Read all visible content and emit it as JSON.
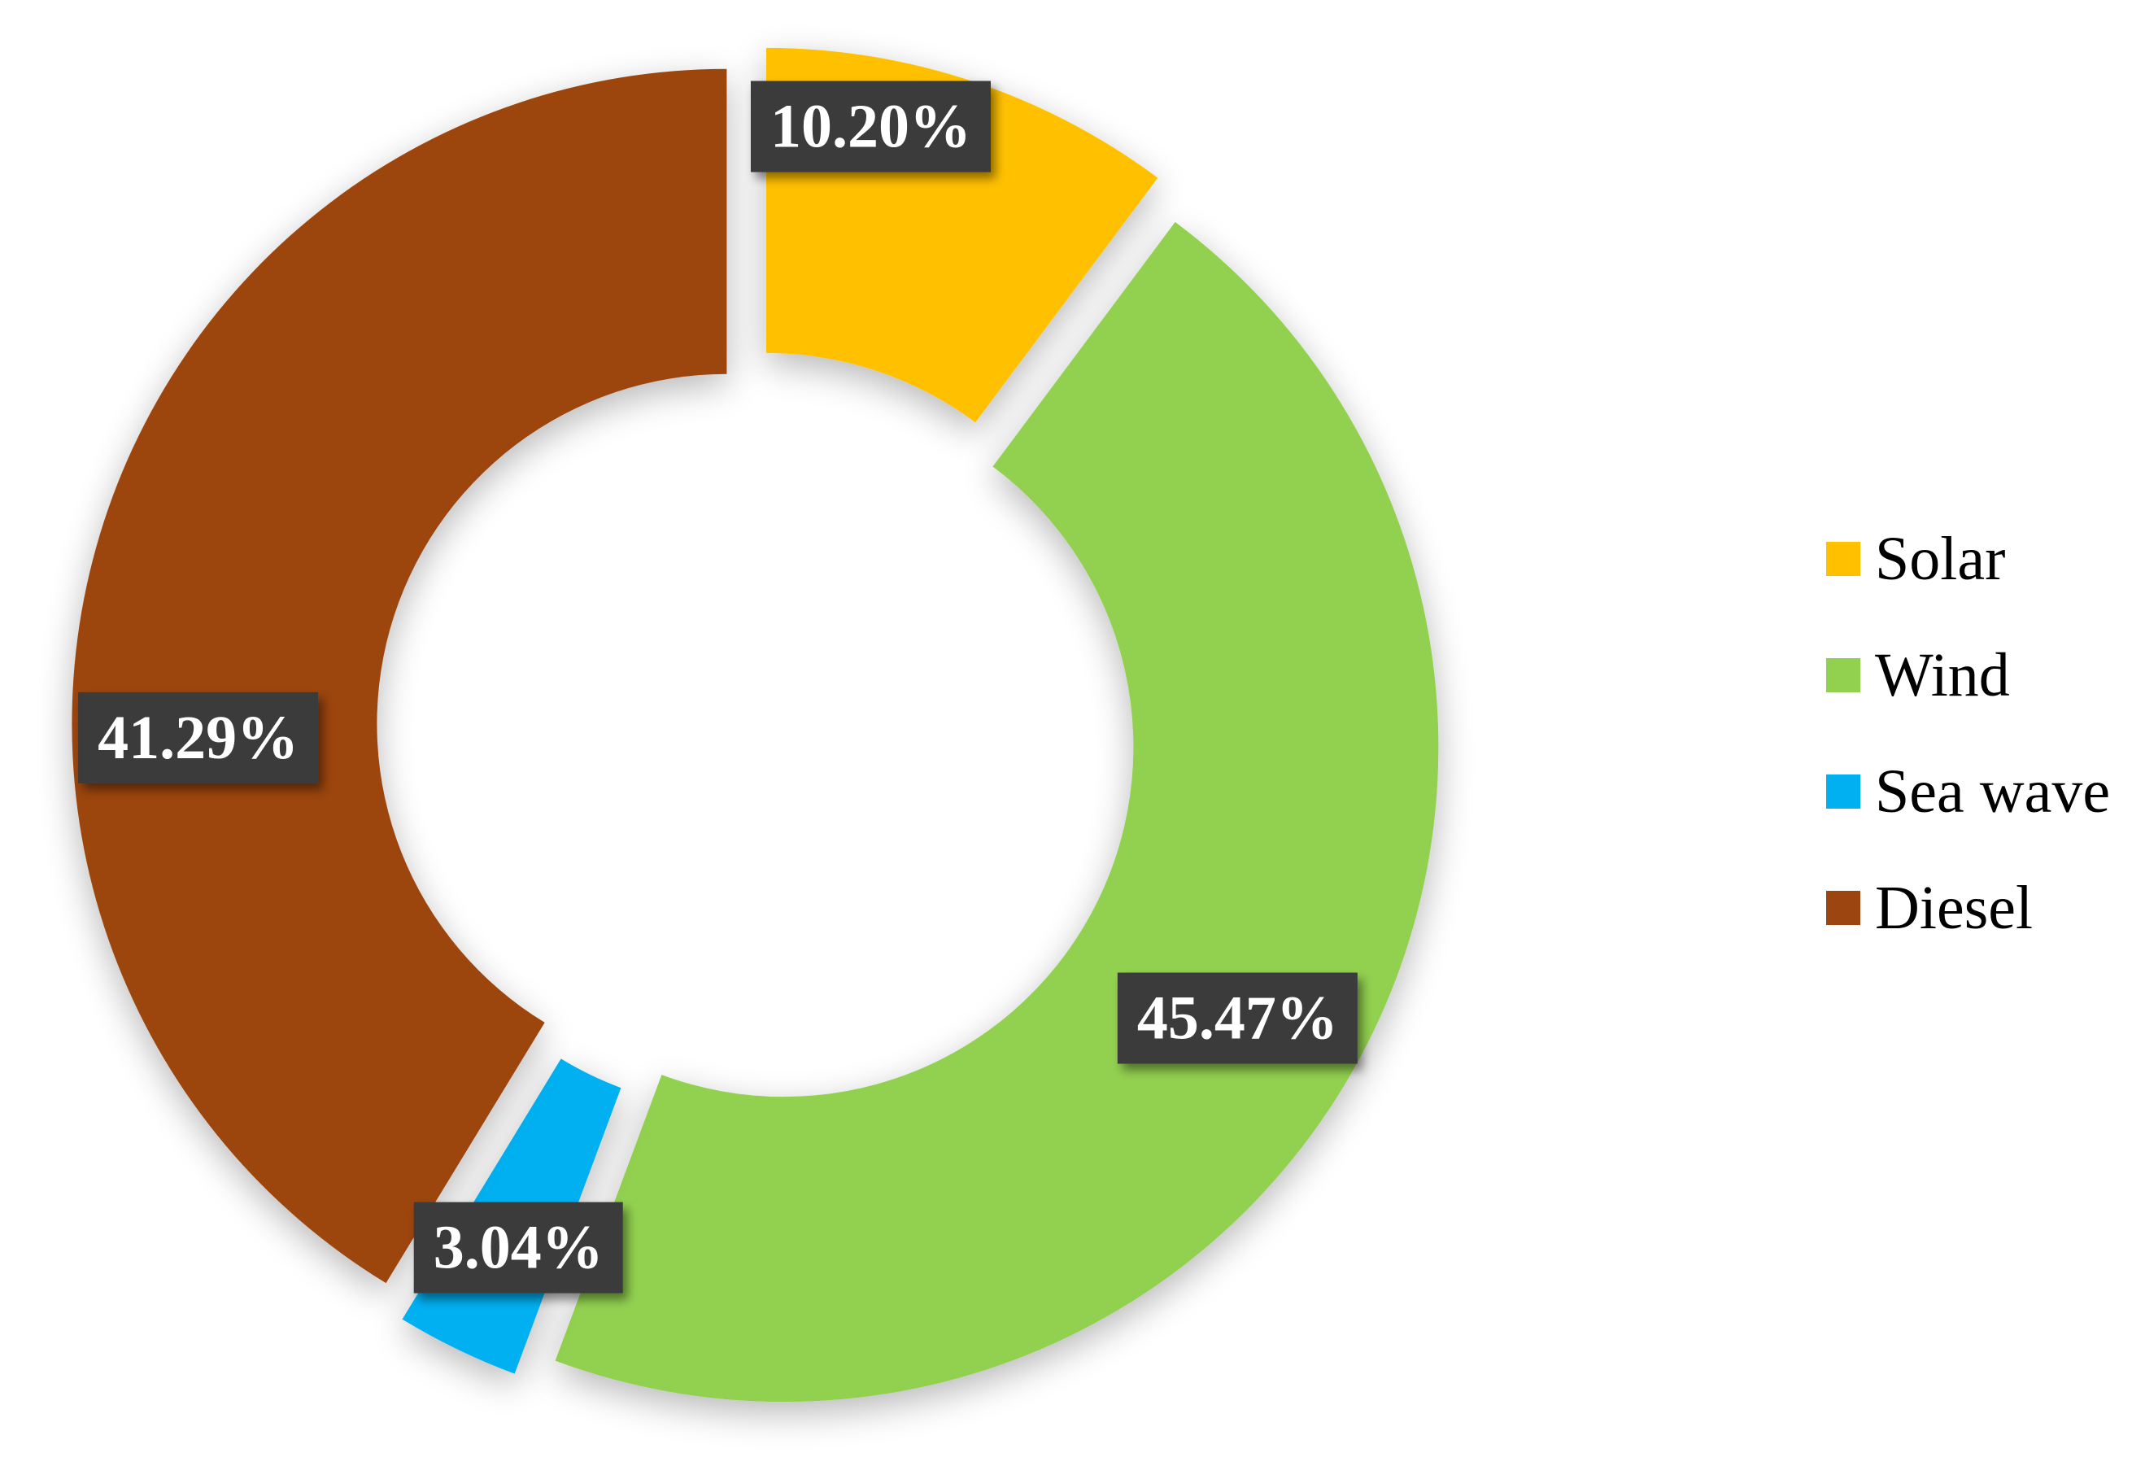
{
  "chart_data": {
    "type": "pie",
    "variant": "donut",
    "title": "",
    "categories": [
      "Solar",
      "Wind",
      "Sea wave",
      "Diesel"
    ],
    "values": [
      10.2,
      45.47,
      3.04,
      41.29
    ],
    "labels": [
      "10.20%",
      "45.47%",
      "3.04%",
      "41.29%"
    ],
    "colors": [
      "#FFC000",
      "#92D050",
      "#00B0F0",
      "#9C4510"
    ],
    "legend_position": "right",
    "exploded": true
  },
  "legend": {
    "items": [
      {
        "label": "Solar",
        "color": "#FFC000"
      },
      {
        "label": "Wind",
        "color": "#92D050"
      },
      {
        "label": "Sea wave",
        "color": "#00B0F0"
      },
      {
        "label": "Diesel",
        "color": "#9C4510"
      }
    ]
  }
}
